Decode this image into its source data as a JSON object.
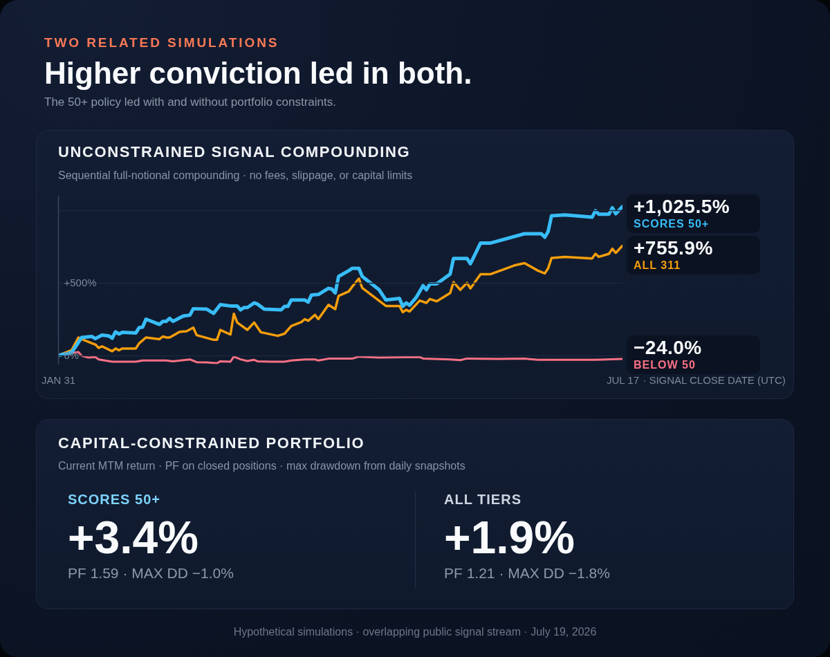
{
  "chart_data": [
    {
      "type": "other",
      "title": "Higher conviction led in both.",
      "subtitle": "The 50+ policy led with and without portfolio constraints.",
      "annotations": [
        "TWO RELATED SIMULATIONS"
      ]
    },
    {
      "type": "line",
      "title": "UNCONSTRAINED SIGNAL COMPOUNDING",
      "subtitle": "Sequential full-notional compounding · no fees, slippage, or capital limits",
      "xlabel": "· SIGNAL CLOSE DATE (UTC)",
      "xlim": [
        "--01-31",
        "--07-17"
      ],
      "xticks": [
        {
          "value": "--01-31",
          "label": "JAN 31"
        },
        {
          "value": "--07-17",
          "label": "JUL 17"
        }
      ],
      "ylim": [
        -60,
        1100
      ],
      "yticks": [
        {
          "value": 0,
          "label": "0%"
        },
        {
          "value": 500,
          "label": "+500%"
        },
        {
          "value": 1000,
          "label": null
        }
      ],
      "grid": "y",
      "series": [
        {
          "name": "SCORES 50+",
          "color": "#38bdf8",
          "x": [
            "--01-31",
            "--02-04",
            "--02-07",
            "--02-10",
            "--02-11",
            "--02-13",
            "--02-15",
            "--02-16",
            "--02-17",
            "--02-18",
            "--02-19",
            "--02-23",
            "--02-24",
            "--02-25",
            "--02-26",
            "--03-02",
            "--03-03",
            "--03-04",
            "--03-05",
            "--03-06",
            "--03-09",
            "--03-11",
            "--03-12",
            "--03-16",
            "--03-18",
            "--03-20",
            "--03-23",
            "--03-25",
            "--03-26",
            "--03-27",
            "--03-28",
            "--03-30",
            "--03-31",
            "--04-02",
            "--04-07",
            "--04-08",
            "--04-09",
            "--04-10",
            "--04-14",
            "--04-15",
            "--04-16",
            "--04-18",
            "--04-21",
            "--04-22",
            "--04-23",
            "--04-24",
            "--04-27",
            "--04-28",
            "--04-30",
            "--05-01",
            "--05-06",
            "--05-08",
            "--05-12",
            "--05-13",
            "--05-14",
            "--05-15",
            "--05-17",
            "--05-19",
            "--05-20",
            "--05-21",
            "--05-23",
            "--05-27",
            "--05-28",
            "--06-01",
            "--06-02",
            "--06-05",
            "--06-08",
            "--06-18",
            "--06-23",
            "--06-24",
            "--06-25",
            "--06-26",
            "--06-30",
            "--07-08",
            "--07-09",
            "--07-10",
            "--07-13",
            "--07-14",
            "--07-15",
            "--07-17"
          ],
          "values": [
            0,
            20,
            124,
            131,
            116,
            140,
            135,
            119,
            163,
            148,
            159,
            155,
            192,
            195,
            250,
            214,
            235,
            235,
            255,
            235,
            271,
            278,
            322,
            319,
            290,
            350,
            341,
            341,
            314,
            330,
            330,
            362,
            354,
            319,
            314,
            338,
            338,
            382,
            382,
            367,
            417,
            420,
            462,
            457,
            430,
            544,
            584,
            600,
            600,
            544,
            452,
            382,
            393,
            338,
            362,
            346,
            401,
            481,
            452,
            493,
            493,
            560,
            668,
            668,
            631,
            774,
            774,
            838,
            838,
            814,
            854,
            962,
            968,
            952,
            997,
            973,
            973,
            1017,
            976,
            1025.5
          ],
          "value_labels": [
            null,
            null,
            null,
            null,
            null,
            null,
            null,
            null,
            null,
            null,
            null,
            null,
            null,
            null,
            null,
            null,
            null,
            null,
            null,
            null,
            null,
            null,
            null,
            null,
            null,
            null,
            null,
            null,
            null,
            null,
            null,
            null,
            null,
            null,
            null,
            null,
            null,
            null,
            null,
            null,
            null,
            null,
            null,
            null,
            null,
            null,
            null,
            null,
            null,
            null,
            null,
            null,
            null,
            null,
            null,
            null,
            null,
            null,
            null,
            null,
            null,
            null,
            null,
            null,
            null,
            null,
            null,
            null,
            null,
            null,
            null,
            null,
            null,
            null,
            null,
            null,
            null,
            null,
            null,
            "+1,025.5%"
          ]
        },
        {
          "name": "ALL 311",
          "color": "#f59e0b",
          "x": [
            "--01-31",
            "--02-04",
            "--02-06",
            "--02-07",
            "--02-10",
            "--02-11",
            "--02-12",
            "--02-13",
            "--02-16",
            "--02-17",
            "--02-18",
            "--02-19",
            "--02-23",
            "--02-24",
            "--02-26",
            "--03-02",
            "--03-03",
            "--03-04",
            "--03-05",
            "--03-08",
            "--03-10",
            "--03-12",
            "--03-13",
            "--03-18",
            "--03-19",
            "--03-20",
            "--03-23",
            "--03-24",
            "--03-25",
            "--03-28",
            "--03-30",
            "--04-01",
            "--04-06",
            "--04-08",
            "--04-10",
            "--04-13",
            "--04-14",
            "--04-15",
            "--04-17",
            "--04-18",
            "--04-21",
            "--04-23",
            "--04-24",
            "--04-27",
            "--04-28",
            "--04-30",
            "--05-01",
            "--05-08",
            "--05-12",
            "--05-13",
            "--05-14",
            "--05-15",
            "--05-18",
            "--05-20",
            "--05-21",
            "--05-23",
            "--05-27",
            "--05-28",
            "--05-30",
            "--06-01",
            "--06-02",
            "--06-05",
            "--06-08",
            "--06-15",
            "--06-18",
            "--06-22",
            "--06-24",
            "--06-25",
            "--06-26",
            "--06-30",
            "--07-08",
            "--07-09",
            "--07-10",
            "--07-13",
            "--07-14",
            "--07-15",
            "--07-17"
          ],
          "values": [
            0,
            36,
            124,
            112,
            84,
            76,
            52,
            63,
            29,
            48,
            36,
            48,
            48,
            84,
            124,
            112,
            131,
            124,
            124,
            163,
            167,
            192,
            140,
            108,
            108,
            176,
            144,
            287,
            227,
            176,
            227,
            160,
            135,
            150,
            203,
            230,
            250,
            239,
            279,
            250,
            349,
            319,
            410,
            441,
            473,
            529,
            465,
            341,
            341,
            298,
            314,
            303,
            378,
            362,
            389,
            373,
            430,
            505,
            452,
            500,
            462,
            560,
            560,
            620,
            636,
            584,
            565,
            600,
            671,
            679,
            668,
            700,
            679,
            700,
            735,
            706,
            755.9
          ],
          "value_labels": [
            null,
            null,
            null,
            null,
            null,
            null,
            null,
            null,
            null,
            null,
            null,
            null,
            null,
            null,
            null,
            null,
            null,
            null,
            null,
            null,
            null,
            null,
            null,
            null,
            null,
            null,
            null,
            null,
            null,
            null,
            null,
            null,
            null,
            null,
            null,
            null,
            null,
            null,
            null,
            null,
            null,
            null,
            null,
            null,
            null,
            null,
            null,
            null,
            null,
            null,
            null,
            null,
            null,
            null,
            null,
            null,
            null,
            null,
            null,
            null,
            null,
            null,
            null,
            null,
            null,
            null,
            null,
            null,
            null,
            null,
            null,
            null,
            null,
            null,
            null,
            null,
            "+755.9%"
          ]
        },
        {
          "name": "BELOW 50",
          "color": "#fb7185",
          "x": [
            "--01-31",
            "--02-03",
            "--02-06",
            "--02-07",
            "--02-09",
            "--02-11",
            "--02-12",
            "--02-16",
            "--02-23",
            "--02-25",
            "--03-04",
            "--03-06",
            "--03-11",
            "--03-13",
            "--03-16",
            "--03-19",
            "--03-20",
            "--03-23",
            "--03-24",
            "--03-26",
            "--03-28",
            "--03-30",
            "--03-31",
            "--04-04",
            "--04-08",
            "--04-10",
            "--04-14",
            "--04-17",
            "--04-18",
            "--04-21",
            "--04-28",
            "--04-30",
            "--05-06",
            "--05-18",
            "--05-19",
            "--05-27",
            "--05-30",
            "--06-01",
            "--06-10",
            "--06-18",
            "--06-22",
            "--07-09",
            "--07-17"
          ],
          "values": [
            0,
            12,
            24,
            -3,
            -14,
            -11,
            -27,
            -43,
            -43,
            -35,
            -35,
            -40,
            -27,
            -46,
            -48,
            -54,
            -40,
            -43,
            -8,
            -27,
            -38,
            -30,
            -40,
            -43,
            -43,
            -35,
            -27,
            -27,
            -35,
            -22,
            -22,
            -8,
            -14,
            -11,
            -21,
            -27,
            -32,
            -21,
            -24,
            -22,
            -30,
            -30,
            -24.0
          ],
          "value_labels": [
            null,
            null,
            null,
            null,
            null,
            null,
            null,
            null,
            null,
            null,
            null,
            null,
            null,
            null,
            null,
            null,
            null,
            null,
            null,
            null,
            null,
            null,
            null,
            null,
            null,
            null,
            null,
            null,
            null,
            null,
            null,
            null,
            null,
            null,
            null,
            null,
            null,
            null,
            null,
            null,
            null,
            null,
            "−24.0%"
          ]
        }
      ]
    },
    {
      "type": "other",
      "title": "CAPITAL-CONSTRAINED PORTFOLIO",
      "subtitle": "Current MTM return · PF on closed positions · max drawdown from daily snapshots",
      "categories": [
        "SCORES 50+",
        "ALL TIERS"
      ],
      "value_labels": [
        "+3.4%",
        "+1.9%"
      ],
      "annotations": [
        "PF 1.59 · MAX DD −1.0%",
        "PF 1.21 · MAX DD −1.8%"
      ]
    },
    {
      "type": "other",
      "annotations": [
        "Hypothetical simulations · overlapping public signal stream · July 19, 2026"
      ]
    }
  ]
}
